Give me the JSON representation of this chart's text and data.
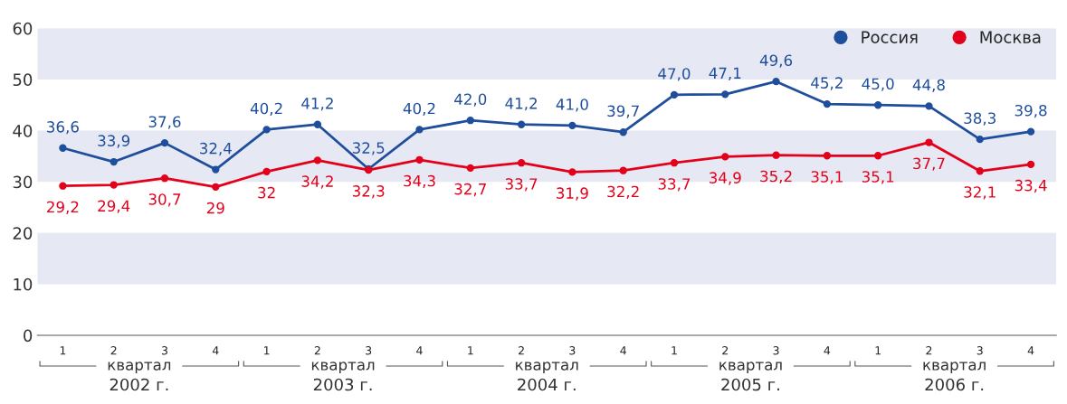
{
  "chart_data": {
    "type": "line",
    "categories": [
      "1",
      "2",
      "3",
      "4",
      "1",
      "2",
      "3",
      "4",
      "1",
      "2",
      "3",
      "4",
      "1",
      "2",
      "3",
      "4",
      "1",
      "2",
      "3",
      "4"
    ],
    "series": [
      {
        "name": "Россия",
        "color": "#1f4e9c",
        "values": [
          36.6,
          33.9,
          37.6,
          32.4,
          40.2,
          41.2,
          32.5,
          40.2,
          42.0,
          41.2,
          41.0,
          39.7,
          47.0,
          47.1,
          49.6,
          45.2,
          45.0,
          44.8,
          38.3,
          39.8
        ],
        "value_labels": [
          "36,6",
          "33,9",
          "37,6",
          "32,4",
          "40,2",
          "41,2",
          "32,5",
          "40,2",
          "42,0",
          "41,2",
          "41,0",
          "39,7",
          "47,0",
          "47,1",
          "49,6",
          "45,2",
          "45,0",
          "44,8",
          "38,3",
          "39,8"
        ]
      },
      {
        "name": "Москва",
        "color": "#e3001b",
        "values": [
          29.2,
          29.4,
          30.7,
          29,
          32,
          34.2,
          32.3,
          34.3,
          32.7,
          33.7,
          31.9,
          32.2,
          33.7,
          34.9,
          35.2,
          35.1,
          35.1,
          37.7,
          32.1,
          33.4
        ],
        "value_labels": [
          "29,2",
          "29,4",
          "30,7",
          "29",
          "32",
          "34,2",
          "32,3",
          "34,3",
          "32,7",
          "33,7",
          "31,9",
          "32,2",
          "33,7",
          "34,9",
          "35,2",
          "35,1",
          "35,1",
          "37,7",
          "32,1",
          "33,4"
        ]
      }
    ],
    "ylim": [
      0,
      60
    ],
    "yticks": [
      0,
      10,
      20,
      30,
      40,
      50,
      60
    ],
    "bands": [
      {
        "axis": "y",
        "from": 10,
        "to": 20,
        "color": "#e6e8f3"
      },
      {
        "axis": "y",
        "from": 30,
        "to": 40,
        "color": "#e6e8f3"
      },
      {
        "axis": "y",
        "from": 50,
        "to": 60,
        "color": "#e6e8f3"
      }
    ],
    "annotations": [
      "квартал",
      "2002 г.",
      "квартал",
      "2003 г.",
      "квартал",
      "2004 г.",
      "квартал",
      "2005 г.",
      "квартал",
      "2006 г."
    ],
    "grid": false,
    "legend": "top right",
    "marker": "circle",
    "line_style": "solid"
  }
}
